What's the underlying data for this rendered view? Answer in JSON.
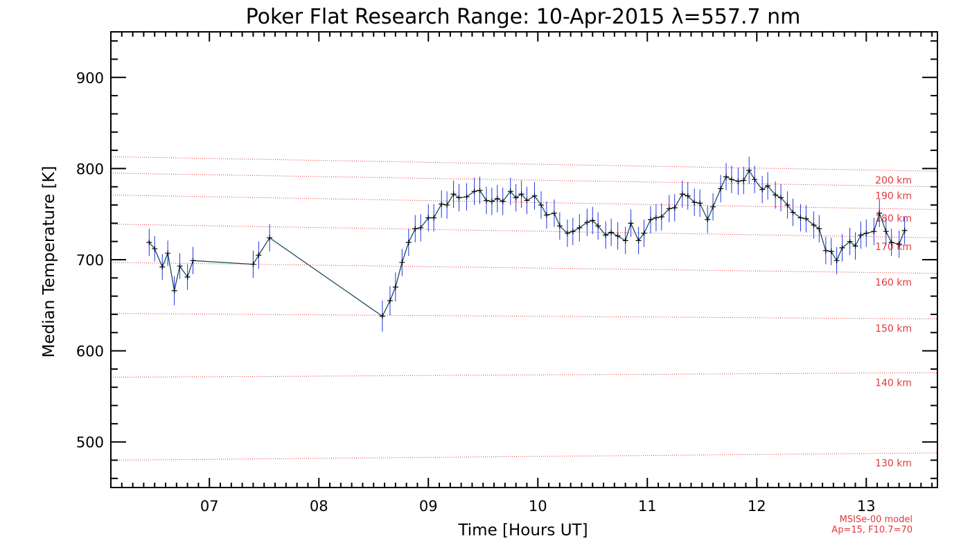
{
  "chart_data": {
    "type": "line",
    "title": "Poker Flat Research Range: 10-Apr-2015 λ=557.7 nm",
    "xlabel": "Time [Hours UT]",
    "ylabel": "Median Temperature [K]",
    "xlim": [
      6.1,
      13.65
    ],
    "ylim": [
      450,
      950
    ],
    "xticks": [
      7,
      8,
      9,
      10,
      11,
      12,
      13
    ],
    "xtick_labels": [
      "07",
      "08",
      "09",
      "10",
      "11",
      "12",
      "13"
    ],
    "yticks": [
      500,
      600,
      700,
      800,
      900
    ],
    "ytick_labels": [
      "500",
      "600",
      "700",
      "800",
      "900"
    ],
    "grid": false,
    "series": [
      {
        "color": "#1a4a5a",
        "errorbar_color": "#1f33e6",
        "marker": "+",
        "points": [
          [
            6.45,
            719,
            15
          ],
          [
            6.5,
            712,
            14
          ],
          [
            6.57,
            692,
            14
          ],
          [
            6.62,
            707,
            14
          ],
          [
            6.68,
            666,
            16
          ],
          [
            6.73,
            693,
            14
          ],
          [
            6.8,
            681,
            14
          ],
          [
            6.85,
            699,
            15
          ],
          [
            7.4,
            695,
            15
          ],
          [
            7.45,
            705,
            15
          ],
          [
            7.55,
            724,
            15
          ],
          [
            8.58,
            638,
            17
          ],
          [
            8.65,
            655,
            16
          ],
          [
            8.7,
            670,
            16
          ],
          [
            8.76,
            697,
            15
          ],
          [
            8.82,
            719,
            15
          ],
          [
            8.88,
            734,
            15
          ],
          [
            8.93,
            735,
            15
          ],
          [
            9.0,
            746,
            15
          ],
          [
            9.05,
            746,
            15
          ],
          [
            9.12,
            761,
            15
          ],
          [
            9.17,
            760,
            15
          ],
          [
            9.23,
            772,
            15
          ],
          [
            9.28,
            768,
            15
          ],
          [
            9.35,
            769,
            15
          ],
          [
            9.42,
            775,
            15
          ],
          [
            9.47,
            776,
            15
          ],
          [
            9.53,
            765,
            15
          ],
          [
            9.58,
            764,
            15
          ],
          [
            9.63,
            767,
            15
          ],
          [
            9.68,
            764,
            15
          ],
          [
            9.75,
            775,
            15
          ],
          [
            9.8,
            768,
            15
          ],
          [
            9.85,
            772,
            15
          ],
          [
            9.9,
            765,
            15
          ],
          [
            9.97,
            770,
            15
          ],
          [
            10.03,
            760,
            15
          ],
          [
            10.08,
            749,
            15
          ],
          [
            10.15,
            751,
            15
          ],
          [
            10.2,
            737,
            15
          ],
          [
            10.27,
            729,
            15
          ],
          [
            10.32,
            731,
            15
          ],
          [
            10.38,
            735,
            15
          ],
          [
            10.45,
            741,
            15
          ],
          [
            10.5,
            743,
            15
          ],
          [
            10.55,
            737,
            15
          ],
          [
            10.62,
            727,
            15
          ],
          [
            10.67,
            730,
            15
          ],
          [
            10.73,
            726,
            15
          ],
          [
            10.8,
            721,
            15
          ],
          [
            10.85,
            740,
            15
          ],
          [
            10.92,
            721,
            15
          ],
          [
            10.97,
            729,
            15
          ],
          [
            11.03,
            744,
            15
          ],
          [
            11.08,
            746,
            15
          ],
          [
            11.13,
            747,
            15
          ],
          [
            11.2,
            756,
            15
          ],
          [
            11.25,
            757,
            15
          ],
          [
            11.32,
            772,
            15
          ],
          [
            11.37,
            770,
            15
          ],
          [
            11.43,
            763,
            15
          ],
          [
            11.48,
            762,
            15
          ],
          [
            11.55,
            744,
            15
          ],
          [
            11.6,
            758,
            15
          ],
          [
            11.67,
            778,
            15
          ],
          [
            11.72,
            791,
            15
          ],
          [
            11.77,
            788,
            15
          ],
          [
            11.83,
            786,
            15
          ],
          [
            11.88,
            787,
            15
          ],
          [
            11.93,
            798,
            15
          ],
          [
            11.98,
            788,
            15
          ],
          [
            12.05,
            777,
            15
          ],
          [
            12.1,
            781,
            15
          ],
          [
            12.17,
            771,
            15
          ],
          [
            12.22,
            768,
            15
          ],
          [
            12.28,
            760,
            15
          ],
          [
            12.33,
            752,
            15
          ],
          [
            12.4,
            746,
            15
          ],
          [
            12.45,
            745,
            15
          ],
          [
            12.52,
            738,
            15
          ],
          [
            12.57,
            734,
            15
          ],
          [
            12.63,
            710,
            15
          ],
          [
            12.68,
            709,
            15
          ],
          [
            12.73,
            699,
            15
          ],
          [
            12.78,
            713,
            15
          ],
          [
            12.85,
            720,
            15
          ],
          [
            12.9,
            715,
            15
          ],
          [
            12.95,
            727,
            15
          ],
          [
            13.0,
            729,
            15
          ],
          [
            13.07,
            731,
            15
          ],
          [
            13.12,
            751,
            15
          ],
          [
            13.18,
            731,
            15
          ],
          [
            13.23,
            719,
            15
          ],
          [
            13.3,
            717,
            15
          ],
          [
            13.35,
            732,
            15
          ]
        ]
      }
    ],
    "reference_lines": {
      "color": "#e0393e",
      "style": "dotted",
      "lines": [
        {
          "label": "130 km",
          "start": 480,
          "end": 488
        },
        {
          "label": "140 km",
          "start": 571,
          "end": 576
        },
        {
          "label": "150 km",
          "start": 641,
          "end": 635
        },
        {
          "label": "160 km",
          "start": 697,
          "end": 685
        },
        {
          "label": "170 km",
          "start": 739,
          "end": 724
        },
        {
          "label": "180 km",
          "start": 771,
          "end": 755
        },
        {
          "label": "190 km",
          "start": 795,
          "end": 780
        },
        {
          "label": "200 km",
          "start": 813,
          "end": 797
        }
      ]
    },
    "annotations": [
      "MSISe-00 model",
      "Ap=15, F10.7=70"
    ]
  }
}
